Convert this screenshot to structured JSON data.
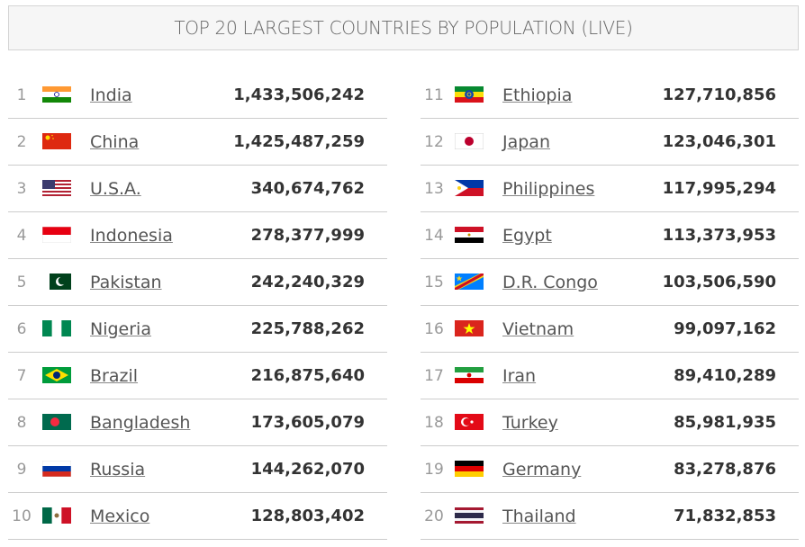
{
  "header": {
    "title": "TOP 20 LARGEST COUNTRIES BY POPULATION (LIVE)"
  },
  "columns": [
    {
      "rows": [
        {
          "rank": 1,
          "country": "India",
          "population": "1,433,506,242"
        },
        {
          "rank": 2,
          "country": "China",
          "population": "1,425,487,259"
        },
        {
          "rank": 3,
          "country": "U.S.A.",
          "population": "340,674,762"
        },
        {
          "rank": 4,
          "country": "Indonesia",
          "population": "278,377,999"
        },
        {
          "rank": 5,
          "country": "Pakistan",
          "population": "242,240,329"
        },
        {
          "rank": 6,
          "country": "Nigeria",
          "population": "225,788,262"
        },
        {
          "rank": 7,
          "country": "Brazil",
          "population": "216,875,640"
        },
        {
          "rank": 8,
          "country": "Bangladesh",
          "population": "173,605,079"
        },
        {
          "rank": 9,
          "country": "Russia",
          "population": "144,262,070"
        },
        {
          "rank": 10,
          "country": "Mexico",
          "population": "128,803,402"
        }
      ]
    },
    {
      "rows": [
        {
          "rank": 11,
          "country": "Ethiopia",
          "population": "127,710,856"
        },
        {
          "rank": 12,
          "country": "Japan",
          "population": "123,046,301"
        },
        {
          "rank": 13,
          "country": "Philippines",
          "population": "117,995,294"
        },
        {
          "rank": 14,
          "country": "Egypt",
          "population": "113,373,953"
        },
        {
          "rank": 15,
          "country": "D.R. Congo",
          "population": "103,506,590"
        },
        {
          "rank": 16,
          "country": "Vietnam",
          "population": "99,097,162"
        },
        {
          "rank": 17,
          "country": "Iran",
          "population": "89,410,289"
        },
        {
          "rank": 18,
          "country": "Turkey",
          "population": "85,981,935"
        },
        {
          "rank": 19,
          "country": "Germany",
          "population": "83,278,876"
        },
        {
          "rank": 20,
          "country": "Thailand",
          "population": "71,832,853"
        }
      ]
    }
  ]
}
